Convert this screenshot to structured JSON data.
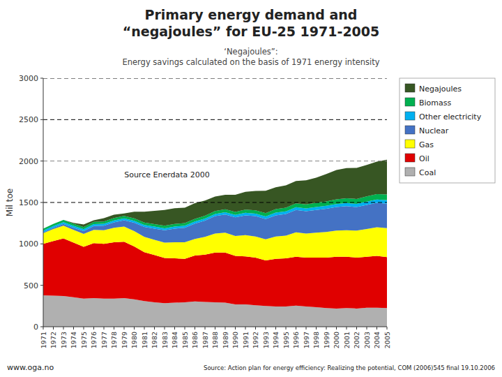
{
  "chart_data": {
    "type": "area",
    "stacked": true,
    "title": [
      "Primary energy demand and",
      "“negajoules” for EU-25 1971-2005"
    ],
    "subtitle": [
      "‘Negajoules”:",
      "Energy savings calculated on the basis of 1971 energy intensity"
    ],
    "y_label": "Mil toe",
    "annotations": [
      "Source Enerdata 2000",
      "www.oga.no",
      "Source: Action plan for energy efficiency: Realizing the potential, COM (2006)545 final 19.10.2006"
    ],
    "x": [
      1971,
      1972,
      1973,
      1974,
      1975,
      1976,
      1977,
      1978,
      1979,
      1980,
      1981,
      1982,
      1983,
      1984,
      1985,
      1986,
      1987,
      1988,
      1989,
      1990,
      1991,
      1992,
      1993,
      1994,
      1995,
      1996,
      1997,
      1998,
      1999,
      2000,
      2001,
      2002,
      2003,
      2004,
      2005
    ],
    "series": [
      {
        "name": "Coal",
        "color": "#b0b0b0",
        "values": [
          380,
          375,
          370,
          355,
          340,
          345,
          340,
          340,
          345,
          330,
          310,
          295,
          285,
          290,
          295,
          305,
          300,
          295,
          290,
          270,
          270,
          260,
          250,
          245,
          245,
          255,
          245,
          235,
          225,
          220,
          225,
          220,
          230,
          230,
          225
        ]
      },
      {
        "name": "Oil",
        "color": "#e00000",
        "values": [
          620,
          660,
          695,
          660,
          625,
          665,
          660,
          680,
          680,
          640,
          590,
          570,
          545,
          535,
          525,
          555,
          570,
          600,
          605,
          585,
          580,
          575,
          550,
          575,
          580,
          590,
          590,
          600,
          610,
          625,
          620,
          615,
          615,
          625,
          615
        ]
      },
      {
        "name": "Gas",
        "color": "#ffff00",
        "values": [
          130,
          145,
          155,
          155,
          155,
          160,
          165,
          175,
          185,
          185,
          185,
          185,
          185,
          195,
          200,
          200,
          215,
          230,
          240,
          240,
          255,
          255,
          255,
          270,
          275,
          295,
          290,
          300,
          310,
          315,
          320,
          325,
          335,
          345,
          350
        ]
      },
      {
        "name": "Nuclear",
        "color": "#4472c4",
        "values": [
          10,
          15,
          20,
          25,
          35,
          45,
          55,
          65,
          75,
          100,
          120,
          135,
          150,
          165,
          175,
          185,
          195,
          210,
          220,
          225,
          240,
          245,
          245,
          255,
          260,
          270,
          270,
          275,
          280,
          285,
          290,
          285,
          290,
          295,
          295
        ]
      },
      {
        "name": "Other electricity",
        "color": "#00b0f0",
        "values": [
          20,
          20,
          22,
          22,
          22,
          23,
          23,
          24,
          24,
          24,
          24,
          24,
          24,
          25,
          25,
          25,
          26,
          27,
          28,
          30,
          30,
          31,
          31,
          32,
          33,
          34,
          34,
          35,
          36,
          37,
          38,
          38,
          40,
          41,
          42
        ]
      },
      {
        "name": "Biomass",
        "color": "#00b050",
        "values": [
          25,
          26,
          27,
          27,
          27,
          28,
          28,
          29,
          29,
          29,
          29,
          30,
          30,
          31,
          32,
          32,
          33,
          34,
          35,
          37,
          38,
          39,
          40,
          42,
          44,
          46,
          48,
          50,
          52,
          55,
          58,
          60,
          63,
          66,
          70
        ]
      },
      {
        "name": "Negajoules",
        "color": "#375623",
        "values": [
          0,
          0,
          0,
          10,
          30,
          20,
          40,
          40,
          30,
          80,
          130,
          160,
          190,
          190,
          185,
          190,
          185,
          175,
          175,
          205,
          215,
          235,
          270,
          265,
          270,
          270,
          290,
          305,
          330,
          355,
          365,
          375,
          380,
          390,
          420
        ]
      }
    ],
    "xlim": [
      1971,
      2005
    ],
    "xticks": [
      1971,
      1972,
      1973,
      1974,
      1975,
      1976,
      1977,
      1978,
      1979,
      1980,
      1981,
      1982,
      1983,
      1984,
      1985,
      1986,
      1987,
      1988,
      1989,
      1990,
      1991,
      1992,
      1993,
      1994,
      1995,
      1996,
      1997,
      1998,
      1999,
      2000,
      2001,
      2002,
      2003,
      2004,
      2005
    ],
    "ylim": [
      0,
      3000
    ],
    "yticks": [
      0,
      500,
      1000,
      1500,
      2000,
      2500,
      3000
    ],
    "reference_lines": [
      {
        "value": 1500,
        "color": "black"
      },
      {
        "value": 2500,
        "color": "black"
      },
      {
        "value": 3000,
        "color": "black"
      },
      {
        "value": 2000,
        "color": "gray"
      }
    ],
    "grid": false,
    "legend": "right"
  }
}
